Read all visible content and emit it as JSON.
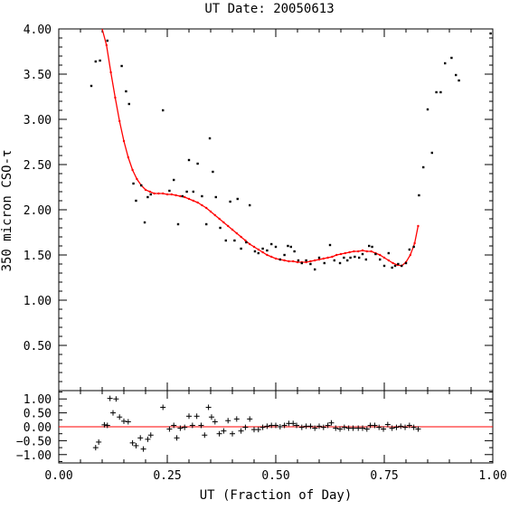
{
  "chart_data": [
    {
      "type": "scatter",
      "title": "UT Date: 20050613",
      "xlabel": "UT (Fraction of Day)",
      "ylabel": "350 micron CSO-τ",
      "xlim": [
        0.0,
        1.0
      ],
      "ylim": [
        0.0,
        4.0
      ],
      "x_ticks": [
        "0.00",
        "0.25",
        "0.50",
        "0.75",
        "1.00"
      ],
      "y_ticks": [
        "0.50",
        "1.00",
        "1.50",
        "2.00",
        "2.50",
        "3.00",
        "3.50",
        "4.00"
      ],
      "grid": false,
      "series": [
        {
          "role": "data-points",
          "marker": "dot",
          "color": "#000000",
          "points": [
            [
              0.075,
              3.37
            ],
            [
              0.085,
              3.64
            ],
            [
              0.095,
              3.65
            ],
            [
              0.112,
              3.87
            ],
            [
              0.145,
              3.59
            ],
            [
              0.155,
              3.31
            ],
            [
              0.162,
              3.17
            ],
            [
              0.172,
              2.29
            ],
            [
              0.178,
              2.1
            ],
            [
              0.19,
              2.27
            ],
            [
              0.198,
              1.86
            ],
            [
              0.205,
              2.14
            ],
            [
              0.212,
              2.17
            ],
            [
              0.24,
              3.1
            ],
            [
              0.255,
              2.21
            ],
            [
              0.265,
              2.33
            ],
            [
              0.275,
              1.84
            ],
            [
              0.285,
              2.15
            ],
            [
              0.295,
              2.2
            ],
            [
              0.3,
              2.55
            ],
            [
              0.31,
              2.2
            ],
            [
              0.32,
              2.51
            ],
            [
              0.33,
              2.15
            ],
            [
              0.34,
              1.84
            ],
            [
              0.348,
              2.79
            ],
            [
              0.355,
              2.42
            ],
            [
              0.362,
              2.14
            ],
            [
              0.372,
              1.8
            ],
            [
              0.385,
              1.66
            ],
            [
              0.395,
              2.09
            ],
            [
              0.405,
              1.66
            ],
            [
              0.412,
              2.12
            ],
            [
              0.42,
              1.57
            ],
            [
              0.432,
              1.64
            ],
            [
              0.44,
              2.05
            ],
            [
              0.452,
              1.54
            ],
            [
              0.46,
              1.52
            ],
            [
              0.47,
              1.57
            ],
            [
              0.48,
              1.55
            ],
            [
              0.49,
              1.62
            ],
            [
              0.5,
              1.59
            ],
            [
              0.51,
              1.45
            ],
            [
              0.52,
              1.5
            ],
            [
              0.528,
              1.6
            ],
            [
              0.535,
              1.59
            ],
            [
              0.543,
              1.54
            ],
            [
              0.552,
              1.44
            ],
            [
              0.56,
              1.41
            ],
            [
              0.57,
              1.44
            ],
            [
              0.58,
              1.4
            ],
            [
              0.59,
              1.34
            ],
            [
              0.6,
              1.47
            ],
            [
              0.612,
              1.41
            ],
            [
              0.625,
              1.61
            ],
            [
              0.635,
              1.44
            ],
            [
              0.648,
              1.41
            ],
            [
              0.657,
              1.47
            ],
            [
              0.665,
              1.44
            ],
            [
              0.672,
              1.47
            ],
            [
              0.682,
              1.48
            ],
            [
              0.692,
              1.47
            ],
            [
              0.7,
              1.51
            ],
            [
              0.708,
              1.45
            ],
            [
              0.715,
              1.6
            ],
            [
              0.722,
              1.59
            ],
            [
              0.73,
              1.51
            ],
            [
              0.74,
              1.45
            ],
            [
              0.75,
              1.38
            ],
            [
              0.76,
              1.52
            ],
            [
              0.768,
              1.36
            ],
            [
              0.775,
              1.38
            ],
            [
              0.782,
              1.4
            ],
            [
              0.79,
              1.38
            ],
            [
              0.8,
              1.41
            ],
            [
              0.808,
              1.56
            ],
            [
              0.818,
              1.59
            ],
            [
              0.83,
              2.16
            ],
            [
              0.84,
              2.47
            ],
            [
              0.85,
              3.11
            ],
            [
              0.86,
              2.63
            ],
            [
              0.87,
              3.3
            ],
            [
              0.88,
              3.3
            ],
            [
              0.89,
              3.62
            ],
            [
              0.905,
              3.68
            ],
            [
              0.915,
              3.49
            ],
            [
              0.922,
              3.43
            ],
            [
              0.995,
              3.95
            ]
          ]
        },
        {
          "role": "fit",
          "marker": "line",
          "color": "#ff0000",
          "points": [
            [
              0.1,
              4.05
            ],
            [
              0.11,
              3.82
            ],
            [
              0.12,
              3.52
            ],
            [
              0.13,
              3.24
            ],
            [
              0.14,
              2.98
            ],
            [
              0.15,
              2.76
            ],
            [
              0.16,
              2.58
            ],
            [
              0.17,
              2.44
            ],
            [
              0.18,
              2.34
            ],
            [
              0.19,
              2.27
            ],
            [
              0.2,
              2.22
            ],
            [
              0.21,
              2.2
            ],
            [
              0.22,
              2.18
            ],
            [
              0.23,
              2.18
            ],
            [
              0.24,
              2.18
            ],
            [
              0.25,
              2.17
            ],
            [
              0.26,
              2.17
            ],
            [
              0.27,
              2.16
            ],
            [
              0.28,
              2.15
            ],
            [
              0.29,
              2.14
            ],
            [
              0.3,
              2.12
            ],
            [
              0.31,
              2.1
            ],
            [
              0.32,
              2.08
            ],
            [
              0.33,
              2.05
            ],
            [
              0.34,
              2.02
            ],
            [
              0.35,
              1.98
            ],
            [
              0.36,
              1.94
            ],
            [
              0.37,
              1.9
            ],
            [
              0.38,
              1.86
            ],
            [
              0.39,
              1.82
            ],
            [
              0.4,
              1.78
            ],
            [
              0.41,
              1.74
            ],
            [
              0.42,
              1.7
            ],
            [
              0.43,
              1.66
            ],
            [
              0.44,
              1.62
            ],
            [
              0.45,
              1.59
            ],
            [
              0.46,
              1.56
            ],
            [
              0.47,
              1.53
            ],
            [
              0.48,
              1.5
            ],
            [
              0.49,
              1.48
            ],
            [
              0.5,
              1.46
            ],
            [
              0.51,
              1.45
            ],
            [
              0.52,
              1.44
            ],
            [
              0.53,
              1.43
            ],
            [
              0.54,
              1.43
            ],
            [
              0.55,
              1.42
            ],
            [
              0.56,
              1.42
            ],
            [
              0.57,
              1.42
            ],
            [
              0.58,
              1.43
            ],
            [
              0.59,
              1.44
            ],
            [
              0.6,
              1.45
            ],
            [
              0.61,
              1.46
            ],
            [
              0.62,
              1.47
            ],
            [
              0.63,
              1.48
            ],
            [
              0.64,
              1.5
            ],
            [
              0.65,
              1.51
            ],
            [
              0.66,
              1.52
            ],
            [
              0.67,
              1.53
            ],
            [
              0.68,
              1.54
            ],
            [
              0.69,
              1.54
            ],
            [
              0.7,
              1.55
            ],
            [
              0.71,
              1.54
            ],
            [
              0.72,
              1.54
            ],
            [
              0.73,
              1.52
            ],
            [
              0.74,
              1.5
            ],
            [
              0.75,
              1.47
            ],
            [
              0.76,
              1.44
            ],
            [
              0.77,
              1.41
            ],
            [
              0.78,
              1.39
            ],
            [
              0.79,
              1.38
            ],
            [
              0.8,
              1.42
            ],
            [
              0.81,
              1.5
            ],
            [
              0.82,
              1.63
            ],
            [
              0.828,
              1.82
            ]
          ]
        }
      ]
    },
    {
      "type": "scatter",
      "title": "",
      "xlabel": "UT (Fraction of Day)",
      "ylabel": "",
      "xlim": [
        0.0,
        1.0
      ],
      "ylim": [
        -1.3,
        1.3
      ],
      "x_ticks": [
        "0.00",
        "0.25",
        "0.50",
        "0.75",
        "1.00"
      ],
      "y_ticks": [
        "1.00",
        "0.50",
        "0.00",
        "−0.50",
        "−1.00"
      ],
      "grid": false,
      "series": [
        {
          "role": "residuals",
          "marker": "plus",
          "color": "#000000",
          "points": [
            [
              0.085,
              -0.75
            ],
            [
              0.092,
              -0.55
            ],
            [
              0.105,
              0.07
            ],
            [
              0.112,
              0.05
            ],
            [
              0.118,
              1.02
            ],
            [
              0.125,
              0.5
            ],
            [
              0.132,
              1.0
            ],
            [
              0.14,
              0.35
            ],
            [
              0.15,
              0.2
            ],
            [
              0.16,
              0.18
            ],
            [
              0.17,
              -0.58
            ],
            [
              0.178,
              -0.68
            ],
            [
              0.188,
              -0.4
            ],
            [
              0.195,
              -0.8
            ],
            [
              0.205,
              -0.45
            ],
            [
              0.212,
              -0.3
            ],
            [
              0.24,
              0.7
            ],
            [
              0.255,
              -0.08
            ],
            [
              0.265,
              0.05
            ],
            [
              0.272,
              -0.4
            ],
            [
              0.28,
              -0.05
            ],
            [
              0.29,
              -0.02
            ],
            [
              0.3,
              0.38
            ],
            [
              0.308,
              0.05
            ],
            [
              0.318,
              0.38
            ],
            [
              0.328,
              0.05
            ],
            [
              0.336,
              -0.3
            ],
            [
              0.345,
              0.7
            ],
            [
              0.352,
              0.35
            ],
            [
              0.36,
              0.18
            ],
            [
              0.37,
              -0.25
            ],
            [
              0.38,
              -0.15
            ],
            [
              0.39,
              0.22
            ],
            [
              0.4,
              -0.25
            ],
            [
              0.41,
              0.28
            ],
            [
              0.42,
              -0.15
            ],
            [
              0.43,
              -0.02
            ],
            [
              0.44,
              0.28
            ],
            [
              0.45,
              -0.1
            ],
            [
              0.46,
              -0.1
            ],
            [
              0.47,
              -0.02
            ],
            [
              0.48,
              0.02
            ],
            [
              0.49,
              0.05
            ],
            [
              0.5,
              0.05
            ],
            [
              0.51,
              0.0
            ],
            [
              0.52,
              0.05
            ],
            [
              0.53,
              0.12
            ],
            [
              0.54,
              0.12
            ],
            [
              0.548,
              0.05
            ],
            [
              0.56,
              -0.02
            ],
            [
              0.57,
              0.02
            ],
            [
              0.58,
              0.02
            ],
            [
              0.59,
              -0.05
            ],
            [
              0.6,
              0.02
            ],
            [
              0.61,
              -0.02
            ],
            [
              0.62,
              0.05
            ],
            [
              0.628,
              0.14
            ],
            [
              0.638,
              -0.05
            ],
            [
              0.648,
              -0.08
            ],
            [
              0.658,
              -0.02
            ],
            [
              0.668,
              -0.05
            ],
            [
              0.678,
              -0.05
            ],
            [
              0.69,
              -0.05
            ],
            [
              0.7,
              -0.05
            ],
            [
              0.71,
              -0.08
            ],
            [
              0.718,
              0.05
            ],
            [
              0.728,
              0.05
            ],
            [
              0.738,
              -0.02
            ],
            [
              0.748,
              -0.08
            ],
            [
              0.758,
              0.08
            ],
            [
              0.768,
              -0.05
            ],
            [
              0.778,
              -0.02
            ],
            [
              0.788,
              0.02
            ],
            [
              0.798,
              -0.02
            ],
            [
              0.808,
              0.05
            ],
            [
              0.818,
              -0.02
            ],
            [
              0.828,
              -0.08
            ]
          ]
        },
        {
          "role": "zero-line",
          "marker": "line",
          "color": "#ff0000",
          "points": [
            [
              0.0,
              0.0
            ],
            [
              1.0,
              0.0
            ]
          ]
        }
      ]
    }
  ]
}
